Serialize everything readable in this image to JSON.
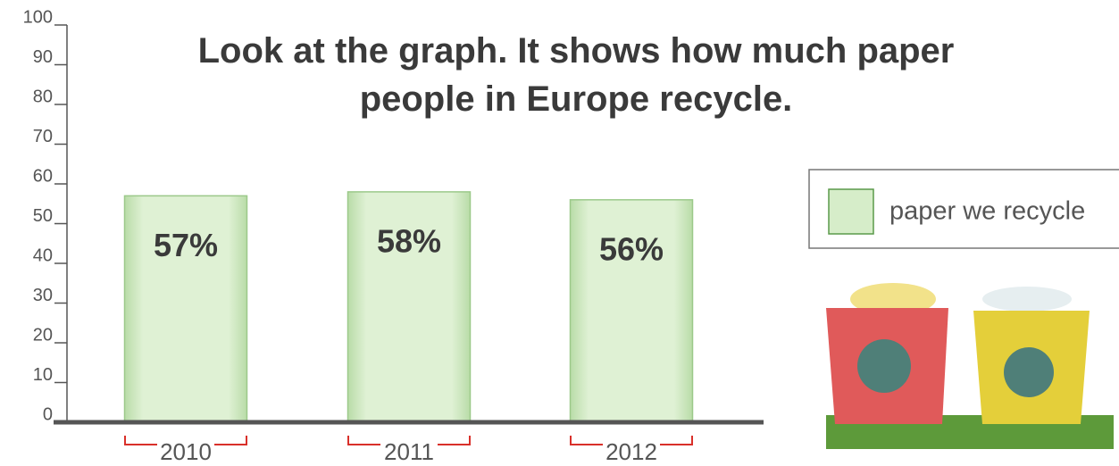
{
  "chart_data": {
    "type": "bar",
    "title": "Look at the graph. It shows how much paper people in Europe recycle.",
    "categories": [
      "2010",
      "2011",
      "2012"
    ],
    "series": [
      {
        "name": "paper we recycle",
        "color": "#d6edc9",
        "values": [
          57,
          58,
          56
        ],
        "value_labels": [
          "57%",
          "58%",
          "56%"
        ]
      }
    ],
    "ylim": [
      0,
      100
    ],
    "yticks": [
      0,
      10,
      20,
      30,
      40,
      50,
      60,
      70,
      80,
      90,
      100
    ]
  }
}
